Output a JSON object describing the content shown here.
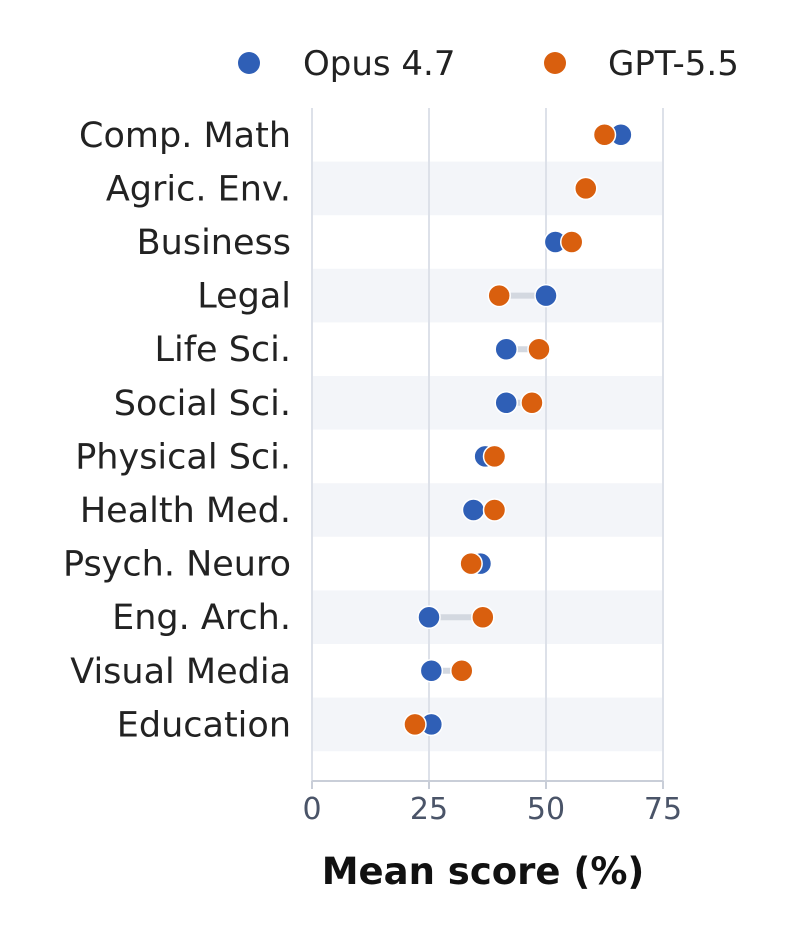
{
  "chart_data": {
    "type": "scatter",
    "xlabel": "Mean score (%)",
    "ylabel": "",
    "xlim": [
      0,
      75
    ],
    "xticks": [
      0,
      25,
      50,
      75
    ],
    "grid": "vertical",
    "legend": "top",
    "categories": [
      "Comp. Math",
      "Agric. Env.",
      "Business",
      "Legal",
      "Life Sci.",
      "Social Sci.",
      "Physical Sci.",
      "Health Med.",
      "Psych. Neuro",
      "Eng. Arch.",
      "Visual Media",
      "Education"
    ],
    "series": [
      {
        "name": "Opus 4.7",
        "color": "#2f5fb6",
        "values": [
          66,
          58.5,
          52,
          50,
          41.5,
          41.5,
          37,
          34.5,
          36,
          25,
          25.5,
          25.5
        ]
      },
      {
        "name": "GPT-5.5",
        "color": "#d95f0e",
        "values": [
          62.5,
          58.5,
          55.5,
          40,
          48.5,
          47,
          39,
          39,
          34,
          36.5,
          32,
          22
        ]
      }
    ],
    "colors": {
      "band": "#f3f5f9",
      "grid": "#dde1e9",
      "connector": "#d3d8e0",
      "axis": "#c9ced8"
    }
  }
}
